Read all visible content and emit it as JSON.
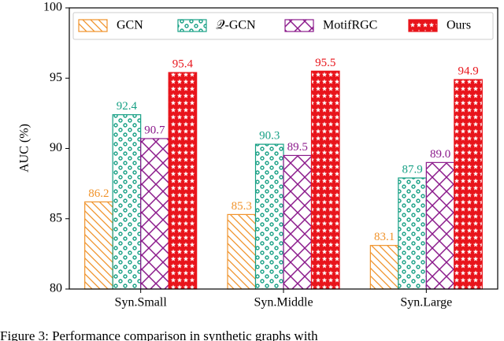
{
  "chart_data": {
    "type": "bar",
    "ylabel": "AUC (%)",
    "caption": "Figure 3: Performance comparison in synthetic graphs with",
    "categories": [
      "Syn.Small",
      "Syn.Middle",
      "Syn.Large"
    ],
    "series": [
      {
        "name": "GCN",
        "color": "#f0932b",
        "hatch": "diagonal",
        "values": [
          86.2,
          85.3,
          83.1
        ],
        "value_labels": [
          "86.2",
          "85.3",
          "83.1"
        ]
      },
      {
        "name": "𝒬-GCN",
        "color": "#17a085",
        "hatch": "dots",
        "values": [
          92.4,
          90.3,
          87.9
        ],
        "value_labels": [
          "92.4",
          "90.3",
          "87.9"
        ]
      },
      {
        "name": "MotifRGC",
        "color": "#8b1a8b",
        "hatch": "cross",
        "values": [
          90.7,
          89.5,
          89.0
        ],
        "value_labels": [
          "90.7",
          "89.5",
          "89.0"
        ]
      },
      {
        "name": "Ours",
        "color": "#e8141b",
        "hatch": "stars",
        "values": [
          95.4,
          95.5,
          94.9
        ],
        "value_labels": [
          "95.4",
          "95.5",
          "94.9"
        ]
      }
    ],
    "ylim": [
      80,
      100
    ],
    "yticks": [
      80,
      85,
      90,
      95,
      100
    ],
    "legend": "top"
  }
}
